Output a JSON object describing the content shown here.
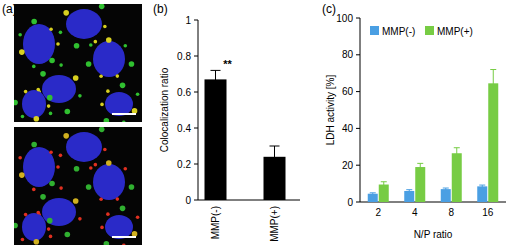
{
  "image": {
    "title": "(a)"
  },
  "chart_data": [
    {
      "type": "bar",
      "title": "(b)",
      "ylabel": "Colocalization ratio",
      "categories": [
        "MMP(-)",
        "MMP(+)"
      ],
      "values": [
        0.67,
        0.24
      ],
      "errors": [
        0.05,
        0.06
      ],
      "color": "#000000",
      "ylim": [
        0,
        1
      ],
      "yticks": [
        0,
        0.2,
        0.4,
        0.6,
        0.8,
        1
      ],
      "annotation": "**"
    },
    {
      "type": "bar",
      "title": "(c)",
      "xlabel": "N/P ratio",
      "ylabel": "LDH activity [%]",
      "categories": [
        "2",
        "4",
        "8",
        "16"
      ],
      "series": [
        {
          "name": "MMP(-)",
          "color": "#4a9fe3",
          "values": [
            4.5,
            6,
            7,
            8.5
          ],
          "errors": [
            0.5,
            0.7,
            0.6,
            0.7
          ]
        },
        {
          "name": "MMP(+)",
          "color": "#77cc44",
          "values": [
            9.5,
            19,
            26.5,
            64.5
          ],
          "errors": [
            1.5,
            2,
            3,
            7.5
          ]
        }
      ],
      "ylim": [
        0,
        100
      ],
      "yticks": [
        0,
        20,
        40,
        60,
        80,
        100
      ],
      "legend": "top-left"
    }
  ]
}
